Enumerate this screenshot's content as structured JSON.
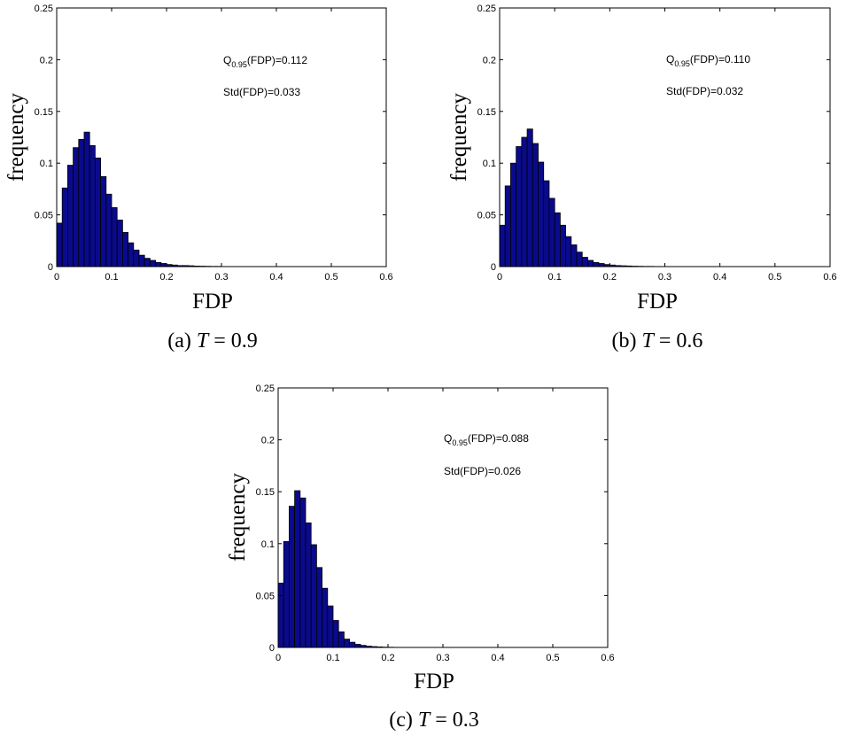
{
  "colors": {
    "bar_fill": "#0a0a8c",
    "bar_edge": "#000000"
  },
  "chart_data": [
    {
      "type": "bar",
      "panel": "a",
      "caption_prefix": "(a)",
      "caption_var": "T",
      "caption_value": "= 0.9",
      "xlabel": "FDP",
      "ylabel": "frequency",
      "xlim": [
        0,
        0.6
      ],
      "ylim": [
        0,
        0.25
      ],
      "xticks": [
        "0",
        "0.1",
        "0.2",
        "0.3",
        "0.4",
        "0.5",
        "0.6"
      ],
      "yticks": [
        "0",
        "0.05",
        "0.1",
        "0.15",
        "0.2",
        "0.25"
      ],
      "annotation_q_main": "Q",
      "annotation_q_sub": "0.95",
      "annotation_q_rest": "(FDP)=0.112",
      "annotation_std": "Std(FDP)=0.033",
      "bin_width": 0.01,
      "x_start": 0,
      "values": [
        0.042,
        0.076,
        0.098,
        0.115,
        0.123,
        0.13,
        0.117,
        0.105,
        0.087,
        0.07,
        0.057,
        0.045,
        0.033,
        0.023,
        0.016,
        0.011,
        0.008,
        0.006,
        0.004,
        0.003,
        0.002,
        0.0015,
        0.001,
        0.001,
        0.0008,
        0.0005,
        0.0004,
        0.0003,
        0.0002,
        0.0002
      ]
    },
    {
      "type": "bar",
      "panel": "b",
      "caption_prefix": "(b)",
      "caption_var": "T",
      "caption_value": "= 0.6",
      "xlabel": "FDP",
      "ylabel": "frequency",
      "xlim": [
        0,
        0.6
      ],
      "ylim": [
        0,
        0.25
      ],
      "xticks": [
        "0",
        "0.1",
        "0.2",
        "0.3",
        "0.4",
        "0.5",
        "0.6"
      ],
      "yticks": [
        "0",
        "0.05",
        "0.1",
        "0.15",
        "0.2",
        "0.25"
      ],
      "annotation_q_main": "Q",
      "annotation_q_sub": "0.95",
      "annotation_q_rest": "(FDP)=0.110",
      "annotation_std": "Std(FDP)=0.032",
      "bin_width": 0.01,
      "x_start": 0,
      "values": [
        0.04,
        0.078,
        0.1,
        0.116,
        0.125,
        0.133,
        0.119,
        0.101,
        0.083,
        0.066,
        0.052,
        0.04,
        0.029,
        0.021,
        0.014,
        0.009,
        0.006,
        0.004,
        0.003,
        0.002,
        0.0015,
        0.001,
        0.0008,
        0.0006,
        0.0004,
        0.0003,
        0.0002,
        0.0002,
        0.0001,
        0.0001
      ]
    },
    {
      "type": "bar",
      "panel": "c",
      "caption_prefix": "(c)",
      "caption_var": "T",
      "caption_value": "= 0.3",
      "xlabel": "FDP",
      "ylabel": "frequency",
      "xlim": [
        0,
        0.6
      ],
      "ylim": [
        0,
        0.25
      ],
      "xticks": [
        "0",
        "0.1",
        "0.2",
        "0.3",
        "0.4",
        "0.5",
        "0.6"
      ],
      "yticks": [
        "0",
        "0.05",
        "0.1",
        "0.15",
        "0.2",
        "0.25"
      ],
      "annotation_q_main": "Q",
      "annotation_q_sub": "0.95",
      "annotation_q_rest": "(FDP)=0.088",
      "annotation_std": "Std(FDP)=0.026",
      "bin_width": 0.01,
      "x_start": 0,
      "values": [
        0.062,
        0.102,
        0.136,
        0.151,
        0.144,
        0.12,
        0.099,
        0.077,
        0.057,
        0.04,
        0.026,
        0.015,
        0.008,
        0.005,
        0.003,
        0.002,
        0.0012,
        0.0008,
        0.0005,
        0.0003,
        0.0002,
        0.0001
      ]
    }
  ]
}
